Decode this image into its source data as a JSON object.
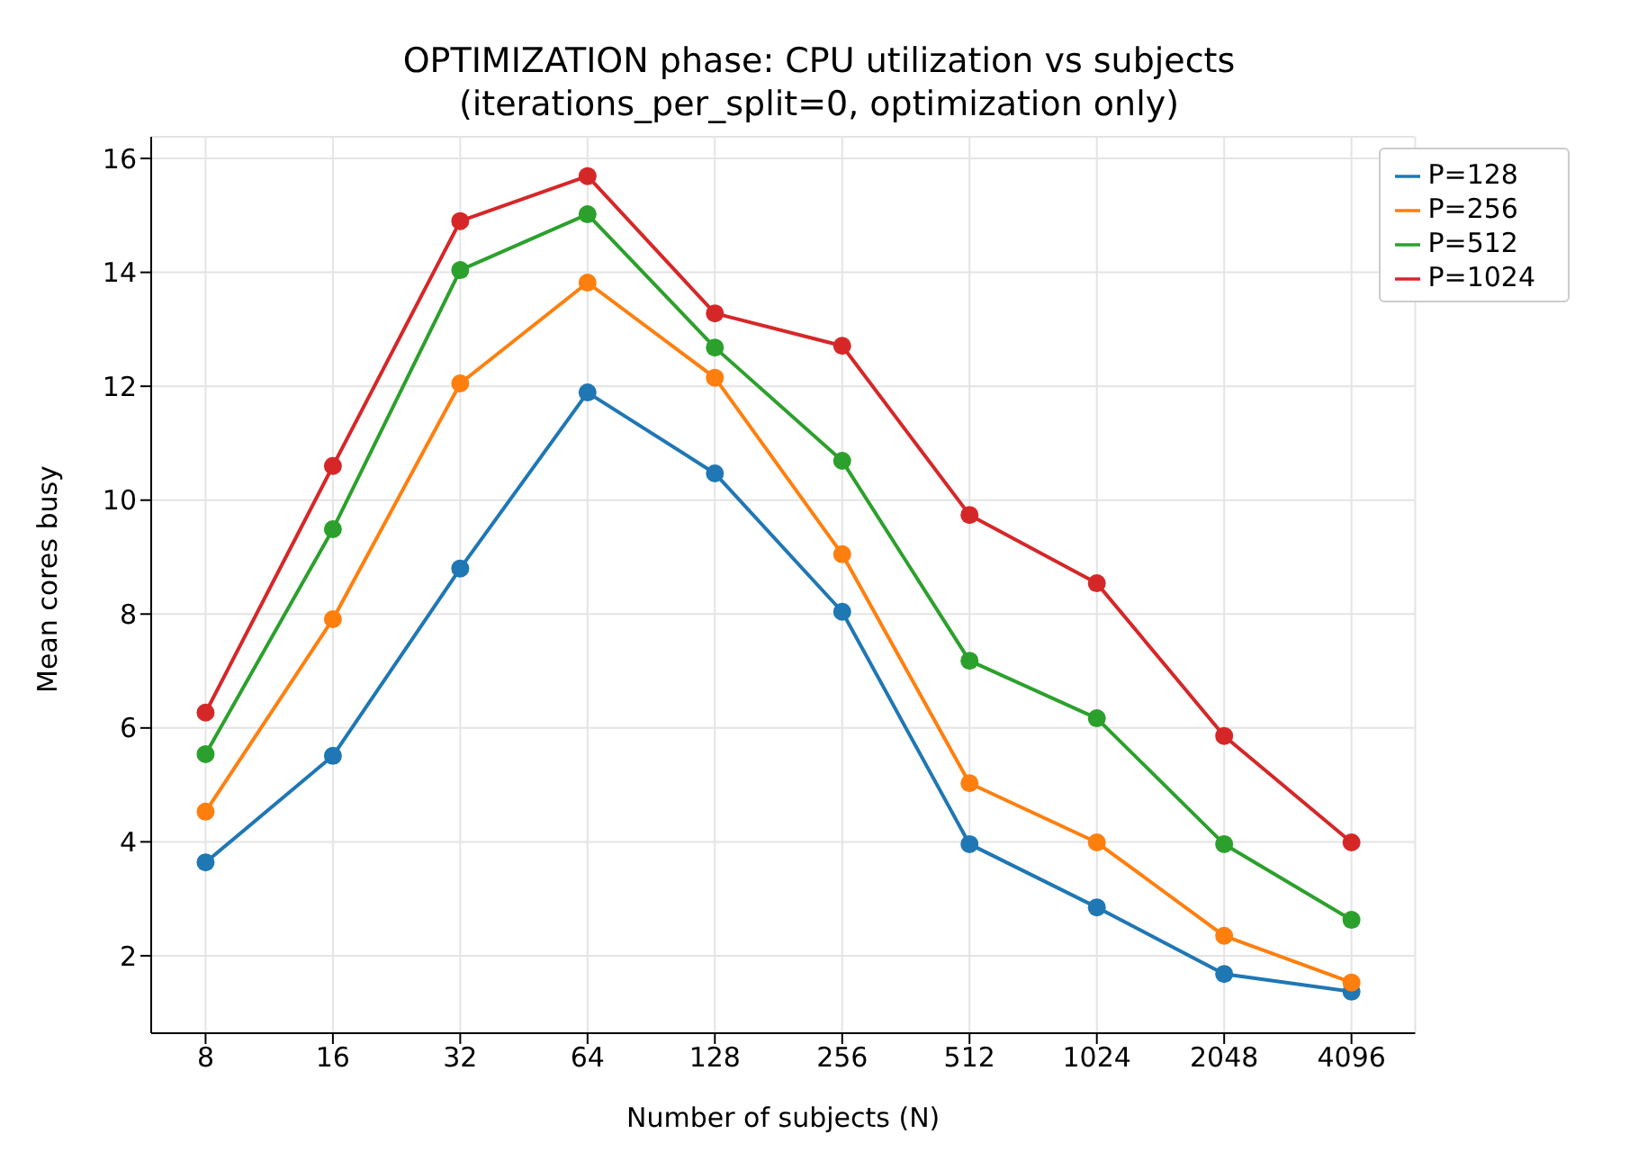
{
  "chart_data": {
    "type": "line",
    "title": "OPTIMIZATION phase: CPU utilization vs subjects",
    "subtitle": "(iterations_per_split=0, optimization only)",
    "xlabel": "Number of subjects (N)",
    "ylabel": "Mean cores busy",
    "x": [
      8,
      16,
      32,
      64,
      128,
      256,
      512,
      1024,
      2048,
      4096
    ],
    "series": [
      {
        "name": "P=128",
        "color": "#1f77b4",
        "values": [
          3.64,
          5.51,
          8.8,
          11.89,
          10.47,
          8.04,
          3.96,
          2.85,
          1.68,
          1.37
        ]
      },
      {
        "name": "P=256",
        "color": "#ff7f0e",
        "values": [
          4.53,
          7.91,
          12.05,
          13.82,
          12.15,
          9.05,
          5.03,
          3.99,
          2.35,
          1.53
        ]
      },
      {
        "name": "P=512",
        "color": "#2ca02c",
        "values": [
          5.54,
          9.49,
          14.04,
          15.02,
          12.68,
          10.69,
          7.18,
          6.17,
          3.96,
          2.63
        ]
      },
      {
        "name": "P=1024",
        "color": "#d62728",
        "values": [
          6.27,
          10.6,
          14.9,
          15.69,
          13.28,
          12.71,
          9.74,
          8.54,
          5.86,
          3.99
        ]
      }
    ],
    "log": "x",
    "xlim": [
      5.95,
      5793
    ],
    "xticks": [
      8,
      16,
      32,
      64,
      128,
      256,
      512,
      1024,
      2048,
      4096
    ],
    "ylim": [
      0.64,
      16.38
    ],
    "yticks": [
      2,
      4,
      6,
      8,
      10,
      12,
      14,
      16
    ],
    "grid": true,
    "legend": "top right",
    "marker": "circle",
    "line_style": "solid"
  }
}
